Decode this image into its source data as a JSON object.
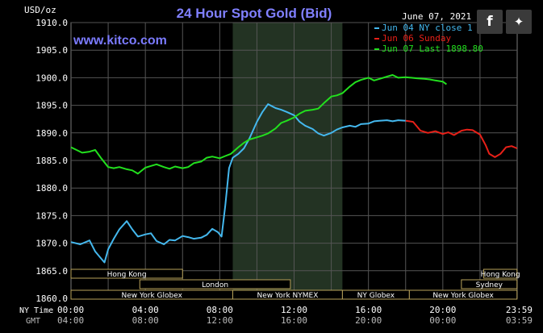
{
  "unit_label": "USD/oz",
  "site_label": "www.kitco.com",
  "date_label": "June 07, 2021",
  "social": {
    "facebook": "f",
    "twitter": "🐦"
  },
  "time_axis": {
    "ny_label": "NY Time",
    "gmt_label": "GMT",
    "ny_ticks": [
      "00:00",
      "04:00",
      "08:00",
      "12:00",
      "16:00",
      "20:00",
      "23:59"
    ],
    "gmt_ticks": [
      "04:00",
      "08:00",
      "12:00",
      "16:00",
      "20:00",
      "00:00",
      "03:59"
    ]
  },
  "sessions": [
    {
      "label": "Hong Kong",
      "row": 0,
      "start_h": 0,
      "end_h": 6
    },
    {
      "label": "Hong Kong",
      "row": 0,
      "start_h": 22.2,
      "end_h": 23.99
    },
    {
      "label": "London",
      "row": 1,
      "start_h": 3.7,
      "end_h": 11.8
    },
    {
      "label": "Sydney",
      "row": 1,
      "start_h": 21.0,
      "end_h": 23.99
    },
    {
      "label": "New York Globex",
      "row": 2,
      "start_h": 0,
      "end_h": 8.7
    },
    {
      "label": "New York NYMEX",
      "row": 2,
      "start_h": 8.7,
      "end_h": 14.6
    },
    {
      "label": "NY Globex",
      "row": 2,
      "start_h": 14.6,
      "end_h": 18.2
    },
    {
      "label": "New York Globex",
      "row": 2,
      "start_h": 18.2,
      "end_h": 23.99
    }
  ],
  "colors": {
    "blue": "#44b8ee",
    "red": "#e82018",
    "green": "#22e01e",
    "title": "#8080ff",
    "site": "#7b7bff"
  },
  "chart_data": {
    "type": "line",
    "title": "24 Hour Spot Gold (Bid)",
    "xlabel": "",
    "ylabel": "USD/oz",
    "xlim": [
      0,
      24
    ],
    "ylim": [
      1860,
      1910
    ],
    "yticks": [
      "1910.0",
      "1905.0",
      "1900.0",
      "1895.0",
      "1890.0",
      "1885.0",
      "1880.0",
      "1875.0",
      "1870.0",
      "1865.0",
      "1860.0"
    ],
    "grid": true,
    "legend_position": "top-right",
    "shaded_region": [
      8.7,
      14.6
    ],
    "series": [
      {
        "name": "Jun 04 NY close 1",
        "color": "#44b8ee",
        "x": [
          0,
          0.5,
          1,
          1.3,
          1.6,
          1.8,
          2,
          2.3,
          2.6,
          3,
          3.3,
          3.6,
          4,
          4.3,
          4.6,
          5,
          5.3,
          5.6,
          6,
          6.3,
          6.6,
          7,
          7.3,
          7.6,
          7.9,
          8.1,
          8.3,
          8.5,
          8.7,
          9,
          9.3,
          9.6,
          10,
          10.3,
          10.6,
          11,
          11.3,
          11.6,
          12,
          12.3,
          12.6,
          13,
          13.3,
          13.6,
          14,
          14.3,
          14.6,
          15,
          15.3,
          15.6,
          16,
          16.3,
          16.6,
          17,
          17.3,
          17.6,
          18
        ],
        "y": [
          1870.2,
          1869.8,
          1870.5,
          1868.5,
          1867.3,
          1866.5,
          1868.9,
          1870.8,
          1872.5,
          1874.0,
          1872.5,
          1871.2,
          1871.6,
          1871.8,
          1870.4,
          1869.8,
          1870.6,
          1870.5,
          1871.3,
          1871.1,
          1870.8,
          1871.0,
          1871.5,
          1872.6,
          1872.0,
          1871.2,
          1876.8,
          1883.6,
          1885.5,
          1886.2,
          1887.2,
          1889.0,
          1892.0,
          1893.8,
          1895.2,
          1894.5,
          1894.2,
          1893.8,
          1893.2,
          1892.0,
          1891.3,
          1890.7,
          1889.9,
          1889.5,
          1890.0,
          1890.6,
          1891.0,
          1891.3,
          1891.1,
          1891.6,
          1891.7,
          1892.1,
          1892.2,
          1892.3,
          1892.1,
          1892.3,
          1892.2
        ]
      },
      {
        "name": "Jun 06 Sunday",
        "color": "#e82018",
        "x": [
          18,
          18.4,
          18.8,
          19.2,
          19.6,
          20,
          20.3,
          20.6,
          21,
          21.3,
          21.6,
          22,
          22.3,
          22.5,
          22.8,
          23.1,
          23.4,
          23.7,
          23.99
        ],
        "y": [
          1892.2,
          1892.0,
          1890.4,
          1890.0,
          1890.3,
          1889.8,
          1890.1,
          1889.6,
          1890.4,
          1890.6,
          1890.5,
          1889.7,
          1887.8,
          1886.2,
          1885.6,
          1886.2,
          1887.4,
          1887.6,
          1887.2
        ]
      },
      {
        "name": "Jun 07 Last 1898.80",
        "color": "#22e01e",
        "x": [
          0,
          0.3,
          0.6,
          1,
          1.3,
          1.6,
          2,
          2.3,
          2.6,
          3,
          3.3,
          3.6,
          4,
          4.3,
          4.6,
          5,
          5.3,
          5.6,
          6,
          6.3,
          6.6,
          7,
          7.3,
          7.6,
          8,
          8.3,
          8.6,
          9,
          9.3,
          9.6,
          10,
          10.3,
          10.6,
          11,
          11.3,
          11.6,
          12,
          12.3,
          12.6,
          13,
          13.3,
          13.6,
          14,
          14.3,
          14.6,
          15,
          15.3,
          15.6,
          16,
          16.3,
          16.6,
          17,
          17.3,
          17.6,
          18,
          18.3,
          18.6,
          19,
          19.3,
          19.6,
          20,
          20.2
        ],
        "y": [
          1887.4,
          1886.9,
          1886.4,
          1886.6,
          1886.9,
          1885.5,
          1883.8,
          1883.6,
          1883.8,
          1883.4,
          1883.2,
          1882.6,
          1883.7,
          1884.0,
          1884.3,
          1883.8,
          1883.5,
          1883.9,
          1883.6,
          1883.8,
          1884.5,
          1884.8,
          1885.5,
          1885.7,
          1885.4,
          1885.8,
          1886.2,
          1887.4,
          1888.2,
          1888.8,
          1889.2,
          1889.5,
          1889.9,
          1890.8,
          1891.8,
          1892.2,
          1892.8,
          1893.5,
          1894.0,
          1894.2,
          1894.4,
          1895.4,
          1896.6,
          1896.8,
          1897.2,
          1898.4,
          1899.2,
          1899.6,
          1900.0,
          1899.5,
          1899.8,
          1900.2,
          1900.5,
          1900.0,
          1900.1,
          1900.0,
          1899.9,
          1899.8,
          1899.7,
          1899.5,
          1899.3,
          1898.8
        ]
      }
    ]
  }
}
